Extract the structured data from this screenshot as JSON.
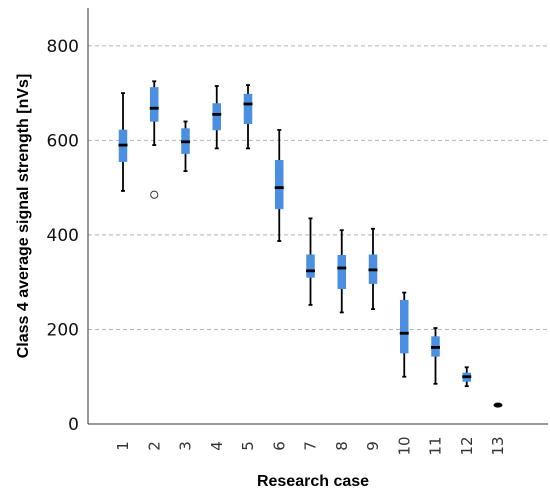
{
  "chart_data": {
    "type": "boxplot",
    "title": "",
    "xlabel": "Research case",
    "ylabel": "Class 4 average signal strength [nVs]",
    "ylim": [
      0,
      880
    ],
    "yticks": [
      0,
      200,
      400,
      600,
      800
    ],
    "grid": "horizontal dashed",
    "box_color": "#4a8fe0",
    "median_color": "#000000",
    "categories": [
      "1",
      "2",
      "3",
      "4",
      "5",
      "6",
      "7",
      "8",
      "9",
      "10",
      "11",
      "12",
      "13"
    ],
    "boxes": [
      {
        "case": "1",
        "min": 493,
        "q1": 555,
        "median": 590,
        "q3": 622,
        "max": 700,
        "outliers": []
      },
      {
        "case": "2",
        "min": 590,
        "q1": 640,
        "median": 668,
        "q3": 712,
        "max": 725,
        "outliers": [
          485
        ]
      },
      {
        "case": "3",
        "min": 535,
        "q1": 572,
        "median": 597,
        "q3": 625,
        "max": 640,
        "outliers": []
      },
      {
        "case": "4",
        "min": 583,
        "q1": 622,
        "median": 655,
        "q3": 678,
        "max": 715,
        "outliers": []
      },
      {
        "case": "5",
        "min": 583,
        "q1": 635,
        "median": 677,
        "q3": 698,
        "max": 717,
        "outliers": []
      },
      {
        "case": "6",
        "min": 387,
        "q1": 455,
        "median": 500,
        "q3": 558,
        "max": 622,
        "outliers": []
      },
      {
        "case": "7",
        "min": 252,
        "q1": 310,
        "median": 324,
        "q3": 358,
        "max": 435,
        "outliers": []
      },
      {
        "case": "8",
        "min": 236,
        "q1": 286,
        "median": 330,
        "q3": 357,
        "max": 410,
        "outliers": []
      },
      {
        "case": "9",
        "min": 243,
        "q1": 297,
        "median": 326,
        "q3": 358,
        "max": 413,
        "outliers": []
      },
      {
        "case": "10",
        "min": 100,
        "q1": 150,
        "median": 192,
        "q3": 262,
        "max": 278,
        "outliers": []
      },
      {
        "case": "11",
        "min": 85,
        "q1": 143,
        "median": 162,
        "q3": 185,
        "max": 203,
        "outliers": []
      },
      {
        "case": "12",
        "min": 80,
        "q1": 90,
        "median": 100,
        "q3": 108,
        "max": 120,
        "outliers": []
      },
      {
        "case": "13",
        "min": 40,
        "q1": 40,
        "median": 40,
        "q3": 40,
        "max": 40,
        "outliers": []
      }
    ]
  }
}
